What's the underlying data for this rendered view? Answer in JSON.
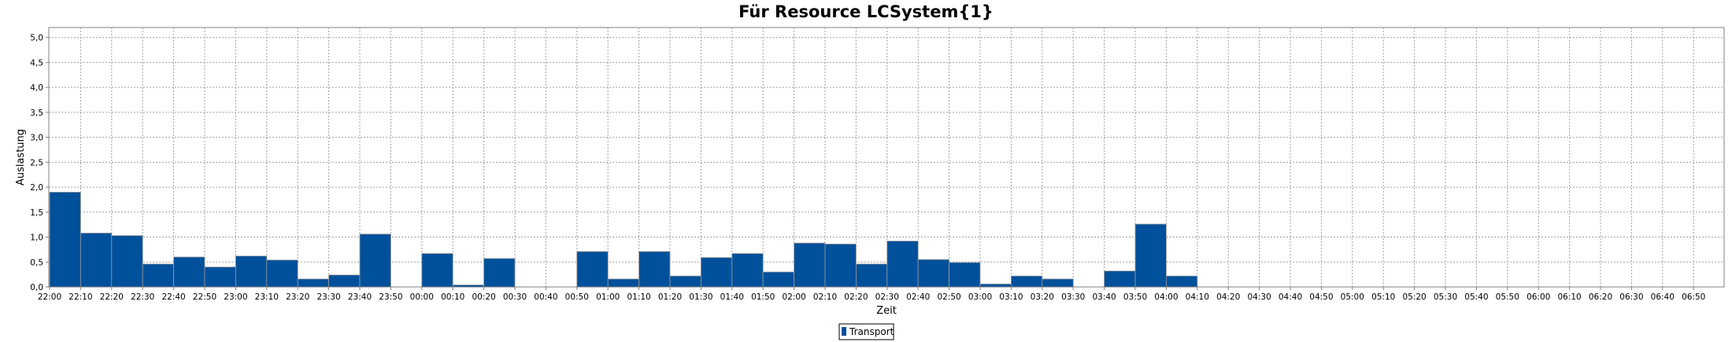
{
  "chart_data": {
    "type": "bar",
    "title": "Für Resource LCSystem{1}",
    "xlabel": "Zeit",
    "ylabel": "Auslastung",
    "ylim": [
      0,
      5.2
    ],
    "y_ticks": [
      "0,0",
      "0,5",
      "1,0",
      "1,5",
      "2,0",
      "2,5",
      "3,0",
      "3,5",
      "4,0",
      "4,5",
      "5,0"
    ],
    "x_ticks": [
      "22:00",
      "22:10",
      "22:20",
      "22:30",
      "22:40",
      "22:50",
      "23:00",
      "23:10",
      "23:20",
      "23:30",
      "23:40",
      "23:50",
      "00:00",
      "00:10",
      "00:20",
      "00:30",
      "00:40",
      "00:50",
      "01:00",
      "01:10",
      "01:20",
      "01:30",
      "01:40",
      "01:50",
      "02:00",
      "02:10",
      "02:20",
      "02:30",
      "02:40",
      "02:50",
      "03:00",
      "03:10",
      "03:20",
      "03:30",
      "03:40",
      "03:50",
      "04:00",
      "04:10",
      "04:20",
      "04:30",
      "04:40",
      "04:50",
      "05:00",
      "05:10",
      "05:20",
      "05:30",
      "05:40",
      "05:50",
      "06:00",
      "06:10",
      "06:20",
      "06:30",
      "06:40",
      "06:50"
    ],
    "grid": true,
    "legend_position": "bottom-center",
    "series": [
      {
        "name": "Transport",
        "color": "#00509b",
        "values": [
          1.9,
          1.08,
          1.03,
          0.46,
          0.6,
          0.4,
          0.62,
          0.54,
          0.16,
          0.24,
          1.06,
          0.0,
          0.67,
          0.04,
          0.57,
          0.0,
          0.0,
          0.71,
          0.16,
          0.71,
          0.22,
          0.59,
          0.67,
          0.3,
          0.88,
          0.86,
          0.46,
          0.92,
          0.55,
          0.49,
          0.06,
          0.22,
          0.16,
          0.0,
          0.32,
          1.26,
          0.22,
          0,
          0,
          0,
          0,
          0,
          0,
          0,
          0,
          0,
          0,
          0,
          0,
          0,
          0,
          0,
          0,
          0
        ]
      }
    ]
  }
}
